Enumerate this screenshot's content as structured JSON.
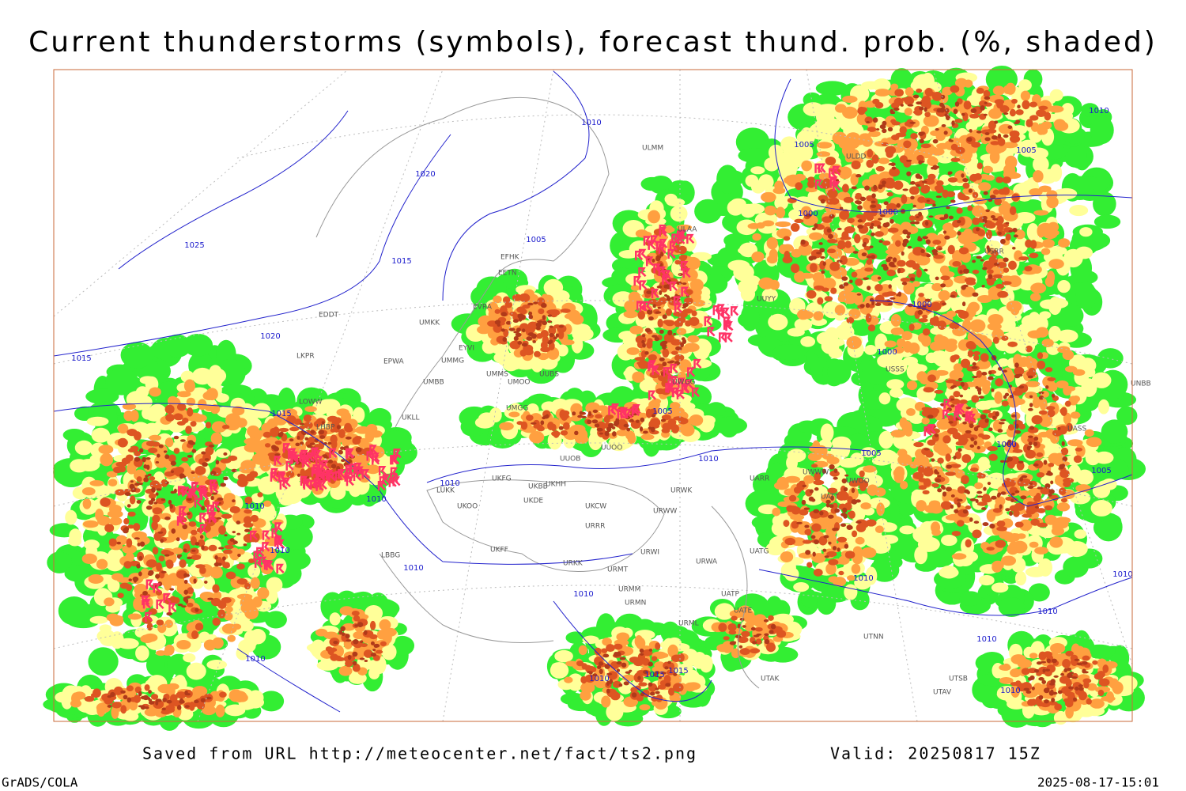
{
  "title": "Current thunderstorms (symbols), forecast thund. prob. (%, shaded)",
  "footer": {
    "source": "Saved from URL http://meteocenter.net/fact/ts2.png",
    "valid": "Valid: 20250817 15Z",
    "software": "GrADS/COLA",
    "timestamp": "2025-08-17-15:01"
  },
  "isobar_labels": [
    "1010",
    "1020",
    "1025",
    "1015",
    "1020",
    "1015",
    "1005",
    "1015",
    "1010",
    "1010",
    "1010",
    "1010",
    "1010",
    "1005",
    "1010",
    "1005",
    "1000",
    "1000",
    "1005",
    "1010",
    "1000",
    "1000",
    "1005",
    "1000",
    "1005",
    "1010",
    "1010",
    "1010",
    "1010",
    "1010",
    "1010",
    "1015",
    "1015",
    "1010",
    "1010"
  ],
  "stations": [
    "EFHK",
    "EETN",
    "EVRA",
    "EYVI",
    "UMKK",
    "UMMG",
    "UMBB",
    "UKLL",
    "EPWA",
    "LKPR",
    "EDDT",
    "LOWW",
    "LHBP",
    "UMMS",
    "UMOO",
    "UUBS",
    "UMGG",
    "UUOB",
    "UUOO",
    "UKFG",
    "UKBB",
    "UKHH",
    "LUKK",
    "UKOO",
    "UKDE",
    "UKCW",
    "URRR",
    "URWW",
    "URWI",
    "URMT",
    "URMM",
    "URMN",
    "URML",
    "UKFF",
    "URKK",
    "LBBG",
    "URWA",
    "UATG",
    "UATE",
    "UATP",
    "UTAK",
    "UTNN",
    "UTAV",
    "UTSB",
    "UNBB",
    "UWWW",
    "UARR",
    "URWK",
    "UWOO",
    "UATT",
    "UUYY",
    "UWGG",
    "ULDD",
    "ULAA",
    "USRR",
    "USSS",
    "UASS",
    "ULMM"
  ]
}
